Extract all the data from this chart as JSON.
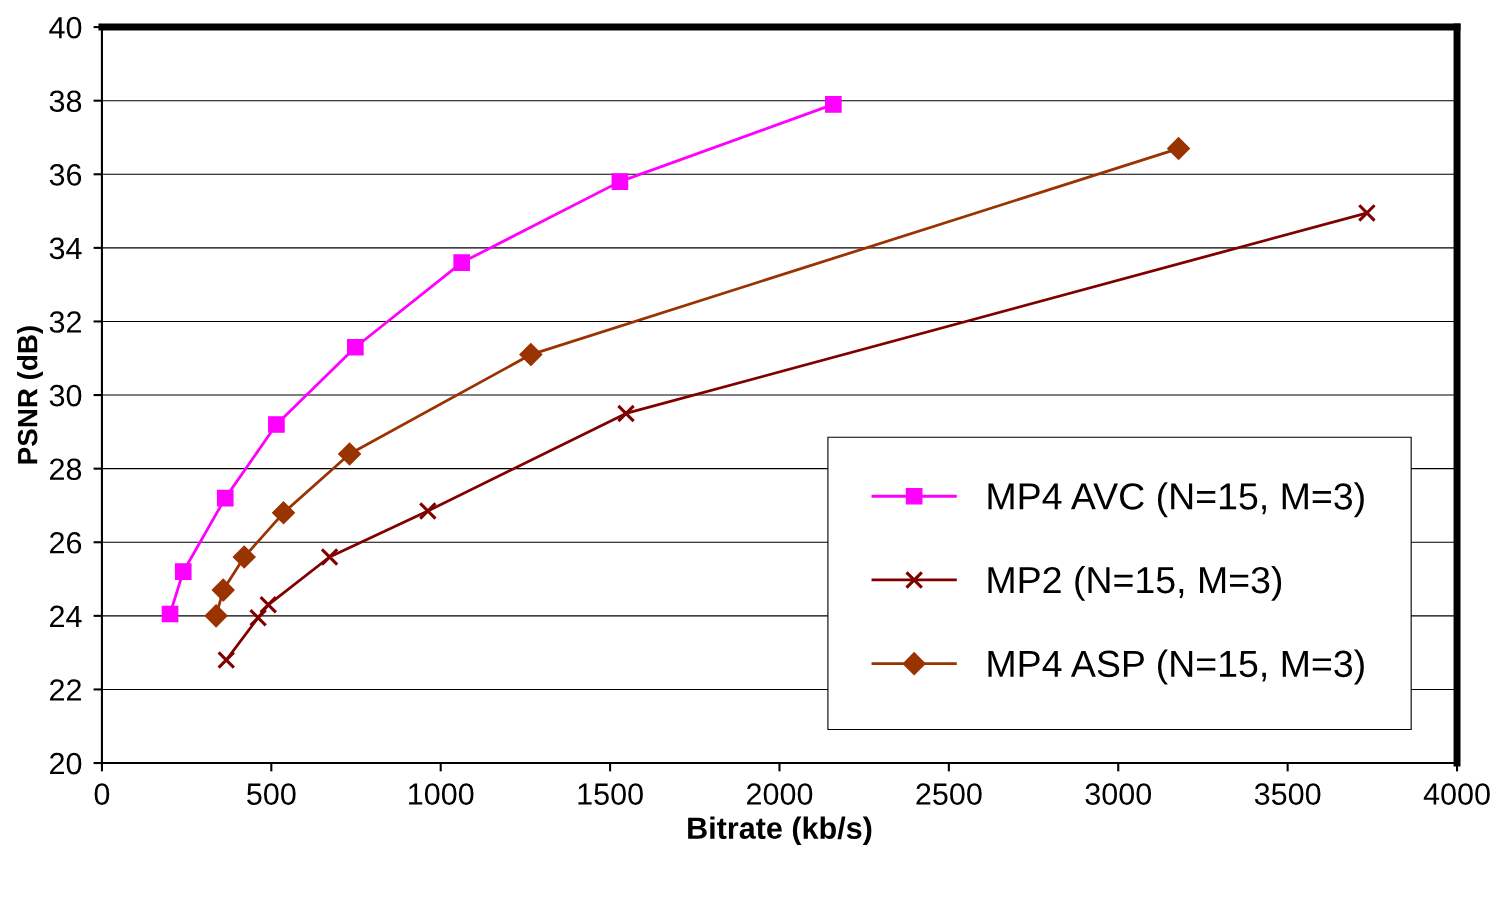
{
  "chart_data": {
    "type": "line",
    "xlabel": "Bitrate (kb/s)",
    "ylabel": "PSNR (dB)",
    "xlim": [
      0,
      4000
    ],
    "xticks": [
      0,
      500,
      1000,
      1500,
      2000,
      2500,
      3000,
      3500,
      4000
    ],
    "ylim": [
      20,
      40
    ],
    "yticks": [
      20,
      22,
      24,
      26,
      28,
      30,
      32,
      34,
      36,
      38,
      40
    ],
    "grid": "y",
    "legend": "bottom right",
    "line_style": "solid",
    "series": [
      {
        "name": "MP4 AVC (N=15, M=3)",
        "color": "#ff00ff",
        "marker": "square",
        "x": [
          201,
          240,
          364,
          515,
          748,
          1062,
          1529,
          2159
        ],
        "values": [
          24.05,
          25.2,
          27.2,
          29.2,
          31.3,
          33.6,
          35.8,
          37.9
        ]
      },
      {
        "name": "MP2 (N=15, M=3)",
        "color": "#800000",
        "marker": "cross",
        "x": [
          367,
          461,
          491,
          672,
          962,
          1547,
          3734
        ],
        "values": [
          22.8,
          23.95,
          24.3,
          25.6,
          26.85,
          29.5,
          34.95
        ]
      },
      {
        "name": "MP4 ASP (N=15, M=3)",
        "color": "#993300",
        "marker": "diamond",
        "x": [
          337,
          358,
          420,
          536,
          731,
          1266,
          3178
        ],
        "values": [
          24.0,
          24.7,
          25.6,
          26.8,
          28.4,
          31.1,
          36.7
        ]
      }
    ]
  }
}
